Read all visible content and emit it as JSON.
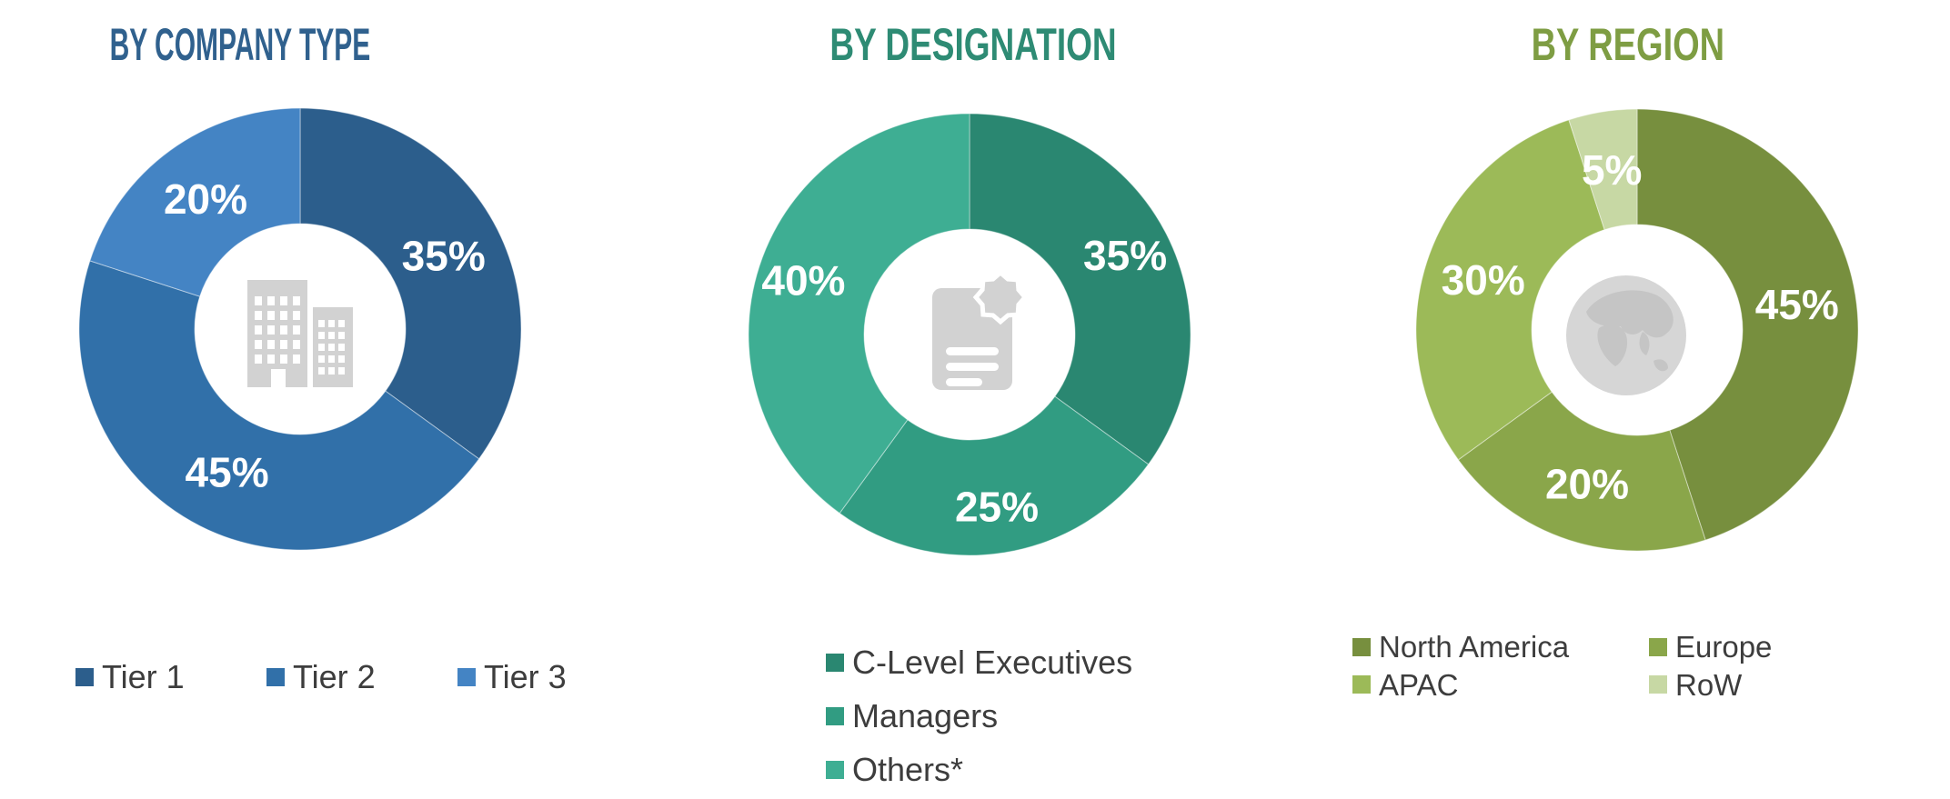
{
  "page_background": "#ffffff",
  "legend_text_color": "#3d3d3d",
  "chart_data": [
    {
      "type": "donut",
      "title": "BY COMPANY TYPE",
      "title_color": "#30618E",
      "center_icon": "buildings-icon",
      "categories": [
        "Tier 1",
        "Tier 2",
        "Tier 3"
      ],
      "values": [
        35,
        45,
        20
      ],
      "labels": [
        "35%",
        "45%",
        "20%"
      ],
      "colors": [
        "#2C5E8C",
        "#3170A9",
        "#4484C4"
      ],
      "label_color": "#ffffff",
      "legend_position": "bottom"
    },
    {
      "type": "donut",
      "title": "BY DESIGNATION",
      "title_color": "#2E8B74",
      "center_icon": "certificate-document-icon",
      "categories": [
        "C-Level Executives",
        "Managers",
        "Others*"
      ],
      "values": [
        35,
        25,
        40
      ],
      "labels": [
        "35%",
        "25%",
        "40%"
      ],
      "colors": [
        "#2A8771",
        "#319C82",
        "#3EAE93"
      ],
      "label_color": "#ffffff",
      "legend_position": "bottom"
    },
    {
      "type": "donut",
      "title": "BY REGION",
      "title_color": "#7E9D43",
      "center_icon": "globe-icon",
      "categories": [
        "North America",
        "Europe",
        "APAC",
        "RoW"
      ],
      "values": [
        45,
        20,
        30,
        5
      ],
      "labels": [
        "45%",
        "20%",
        "30%",
        "5%"
      ],
      "colors": [
        "#778F3E",
        "#8AA64A",
        "#9CBA58",
        "#C7D8A4"
      ],
      "label_color": "#ffffff",
      "legend_position": "bottom"
    }
  ]
}
